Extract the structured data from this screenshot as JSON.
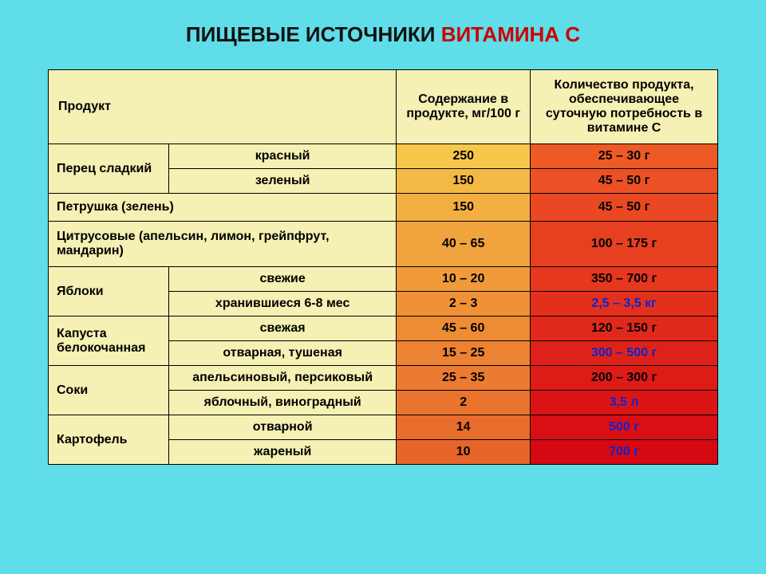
{
  "title_prefix": "ПИЩЕВЫЕ ИСТОЧНИКИ ",
  "title_vc": "ВИТАМИНА С",
  "colors": {
    "page_bg": "#5fdde8",
    "cell_yellow": "#f5f0b3",
    "border": "#000000",
    "text": "#000000",
    "title_red": "#cc0000",
    "blue_link": "#1122cc",
    "grad_val": [
      "#f6c74a",
      "#f4b945",
      "#f3af41",
      "#f1a43d",
      "#f09a3a",
      "#ef9237",
      "#ee8b35",
      "#ec8232",
      "#eb7b30",
      "#ea732e",
      "#e86c2c",
      "#e7652a"
    ],
    "grad_amt": [
      "#ed5a26",
      "#eb5124",
      "#e94822",
      "#e74020",
      "#e5381e",
      "#e3301c",
      "#e1291b",
      "#df2219",
      "#dd1b17",
      "#db1516",
      "#d90f14",
      "#d60812"
    ]
  },
  "col_widths_pct": [
    18,
    34,
    20,
    28
  ],
  "headers": {
    "product": "Продукт",
    "content": "Содержание в продукте, мг/100 г",
    "amount": "Количество продукта, обеспечивающее суточную потребность в витамине С"
  },
  "rows": [
    {
      "group_label": "Перец сладкий",
      "group_rows": 2,
      "sub": "красный",
      "val": "250",
      "amt": "25 – 30 г",
      "amt_blue": false
    },
    {
      "sub": "зеленый",
      "val": "150",
      "amt": "45 – 50 г",
      "amt_blue": false
    },
    {
      "full_label": "Петрушка (зелень)",
      "val": "150",
      "amt": "45 – 50 г",
      "amt_blue": false
    },
    {
      "full_label": "Цитрусовые (апельсин, лимон, грейпфрут, мандарин)",
      "val": "40 – 65",
      "amt": "100 – 175 г",
      "amt_blue": false,
      "tall": true
    },
    {
      "group_label": "Яблоки",
      "group_rows": 2,
      "sub": "свежие",
      "val": "10 – 20",
      "amt": "350 – 700 г",
      "amt_blue": false
    },
    {
      "sub": "хранившиеся 6-8 мес",
      "val": "2 – 3",
      "amt": "2,5 – 3,5 кг",
      "amt_blue": true
    },
    {
      "group_label": "Капуста белокочанная",
      "group_rows": 2,
      "sub": "свежая",
      "val": "45 – 60",
      "amt": "120 – 150 г",
      "amt_blue": false
    },
    {
      "sub": "отварная, тушеная",
      "val": "15 – 25",
      "amt": "300 – 500 г",
      "amt_blue": true
    },
    {
      "group_label": "Соки",
      "group_rows": 2,
      "sub": "апельсиновый, персиковый",
      "val": "25 – 35",
      "amt": "200 – 300 г",
      "amt_blue": false
    },
    {
      "sub": "яблочный, виноградный",
      "val": "2",
      "amt": "3,5 л",
      "amt_blue": true
    },
    {
      "group_label": "Картофель",
      "group_rows": 2,
      "sub": "отварной",
      "val": "14",
      "amt": "500 г",
      "amt_blue": true
    },
    {
      "sub": "жареный",
      "val": "10",
      "amt": "700 г",
      "amt_blue": true
    }
  ]
}
